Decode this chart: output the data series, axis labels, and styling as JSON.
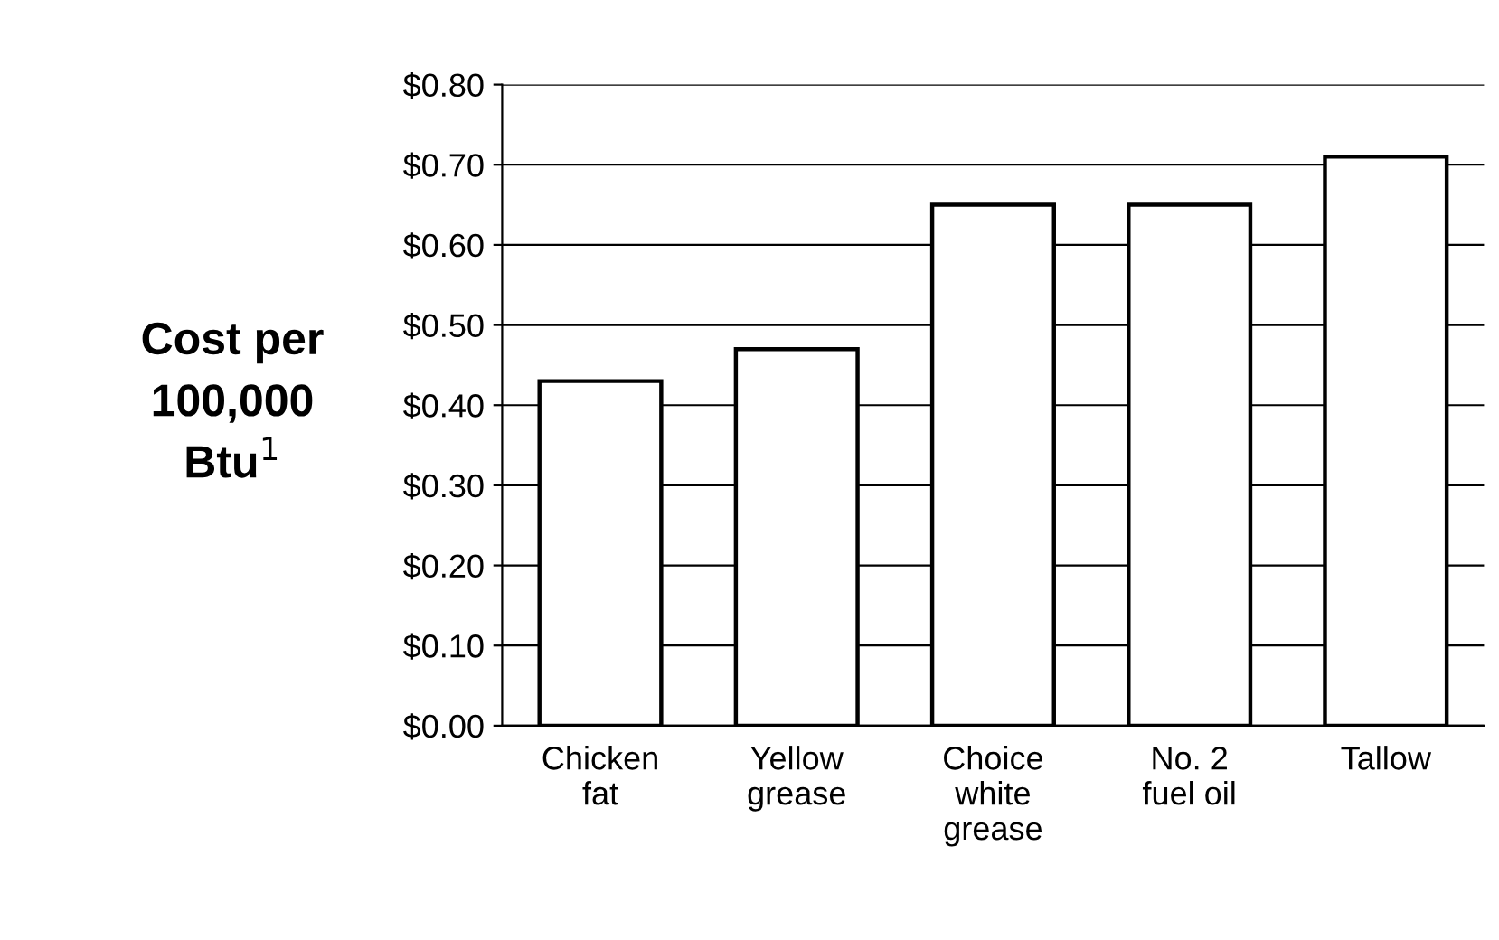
{
  "chart_data": {
    "type": "bar",
    "ylabel": "Cost per\n100,000\nBtu$^{1}$",
    "categories": [
      "Chicken\nfat",
      "Yellow\ngrease",
      "Choice\nwhite\ngrease",
      "No. 2\nfuel oil",
      "Tallow"
    ],
    "values": [
      0.43,
      0.47,
      0.65,
      0.65,
      0.71
    ],
    "color": "#ffffff",
    "ylim": [
      0,
      0.8
    ],
    "yticks": [
      {
        "value": 0,
        "label": "$0.00"
      },
      {
        "value": 0.1,
        "label": "$0.10"
      },
      {
        "value": 0.2,
        "label": "$0.20"
      },
      {
        "value": 0.3,
        "label": "$0.30"
      },
      {
        "value": 0.4,
        "label": "$0.40"
      },
      {
        "value": 0.5,
        "label": "$0.50"
      },
      {
        "value": 0.6,
        "label": "$0.60"
      },
      {
        "value": 0.7,
        "label": "$0.70"
      },
      {
        "value": 0.8,
        "label": "$0.80"
      }
    ],
    "grid": "y"
  }
}
